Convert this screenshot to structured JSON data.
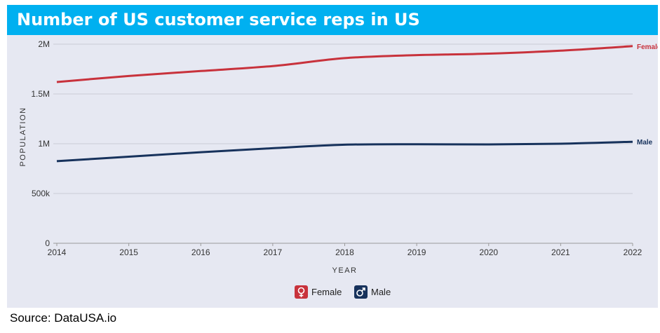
{
  "header": {
    "title": "Number of US customer service reps in US"
  },
  "footer": {
    "source": "Source: DataUSA.io"
  },
  "chart_data": {
    "type": "line",
    "title": "Number of US customer service reps in US",
    "xlabel": "YEAR",
    "ylabel": "POPULATION",
    "x": [
      2014,
      2015,
      2016,
      2017,
      2018,
      2019,
      2020,
      2021,
      2022
    ],
    "ylim": [
      0,
      2000000
    ],
    "yticks": [
      0,
      500000,
      1000000,
      1500000,
      2000000
    ],
    "ytick_labels": [
      "0",
      "500k",
      "1M",
      "1.5M",
      "2M"
    ],
    "grid": true,
    "legend": "bottom-center",
    "series": [
      {
        "name": "Female",
        "color": "#c8323c",
        "icon": "female-symbol-icon",
        "values": [
          1620000,
          1680000,
          1730000,
          1780000,
          1860000,
          1890000,
          1905000,
          1935000,
          1980000
        ]
      },
      {
        "name": "Male",
        "color": "#17325c",
        "icon": "male-symbol-icon",
        "values": [
          825000,
          870000,
          915000,
          955000,
          990000,
          995000,
          993000,
          1000000,
          1020000
        ]
      }
    ]
  }
}
